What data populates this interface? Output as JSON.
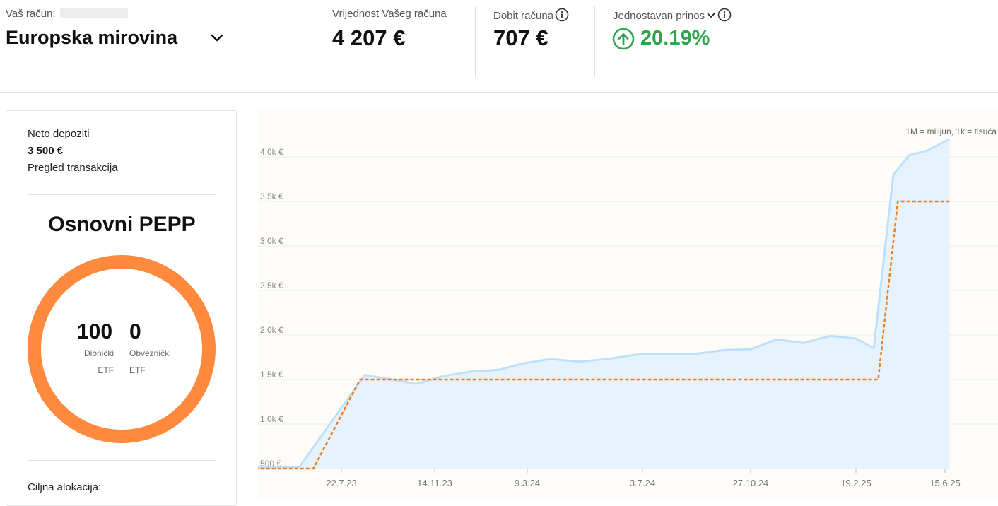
{
  "header": {
    "account_label": "Vaš račun:",
    "account_name": "Europska mirovina",
    "value_label": "Vrijednost Vašeg računa",
    "value": "4 207 €",
    "profit_label": "Dobit računa",
    "profit": "707 €",
    "return_label": "Jednostavan prinos",
    "return_value": "20.19%",
    "colors": {
      "positive": "#2ea44f"
    }
  },
  "card": {
    "deposits_label": "Neto depoziti",
    "deposits_value": "3 500 €",
    "transactions_link": "Pregled transakcija",
    "plan_title": "Osnovni PEPP",
    "allocation": [
      {
        "value": "100",
        "label_line1": "Dionički",
        "label_line2": "ETF"
      },
      {
        "value": "0",
        "label_line1": "Obveznički",
        "label_line2": "ETF"
      }
    ],
    "target_label": "Ciljna alokacija:",
    "donut_color": "#ff8a3d"
  },
  "chart_data": {
    "type": "area",
    "scale_note": "1M = milijun, 1k = tisuća",
    "y_ticks": [
      {
        "value": 500,
        "label": "500 €"
      },
      {
        "value": 1000,
        "label": "1,0k €"
      },
      {
        "value": 1500,
        "label": "1,5k €"
      },
      {
        "value": 2000,
        "label": "2,0k €"
      },
      {
        "value": 2500,
        "label": "2,5k €"
      },
      {
        "value": 3000,
        "label": "3,0k €"
      },
      {
        "value": 3500,
        "label": "3,5k €"
      },
      {
        "value": 4000,
        "label": "4,0k €"
      }
    ],
    "ylim": [
      500,
      4150
    ],
    "x_ticks": [
      "22.7.23",
      "14.11.23",
      "9.3.24",
      "3.7.24",
      "27.10.24",
      "19.2.25",
      "15.6.25"
    ],
    "x_range": [
      -1.35,
      6.05
    ],
    "grid": true,
    "series": [
      {
        "kind": "area",
        "color": "#bfe0fb",
        "fill": "#e6f3fd",
        "points": [
          [
            -1.35,
            500
          ],
          [
            -0.45,
            520
          ],
          [
            0.25,
            1550
          ],
          [
            0.55,
            1500
          ],
          [
            0.8,
            1450
          ],
          [
            1.1,
            1540
          ],
          [
            1.4,
            1590
          ],
          [
            1.7,
            1610
          ],
          [
            1.95,
            1680
          ],
          [
            2.2,
            1730
          ],
          [
            2.45,
            1700
          ],
          [
            2.7,
            1730
          ],
          [
            2.95,
            1780
          ],
          [
            3.2,
            1790
          ],
          [
            3.5,
            1790
          ],
          [
            3.75,
            1830
          ],
          [
            4.0,
            1840
          ],
          [
            4.25,
            1950
          ],
          [
            4.5,
            1910
          ],
          [
            4.75,
            1990
          ],
          [
            5.0,
            1960
          ],
          [
            5.2,
            1850
          ],
          [
            5.42,
            3800
          ],
          [
            5.6,
            4020
          ],
          [
            5.8,
            4070
          ],
          [
            6.05,
            4200
          ]
        ]
      },
      {
        "kind": "dashed-line",
        "color": "#f07d1c",
        "points": [
          [
            -1.35,
            500
          ],
          [
            -0.3,
            500
          ],
          [
            0.2,
            1500
          ],
          [
            5.25,
            1500
          ],
          [
            5.47,
            3500
          ],
          [
            6.05,
            3500
          ]
        ]
      }
    ]
  }
}
